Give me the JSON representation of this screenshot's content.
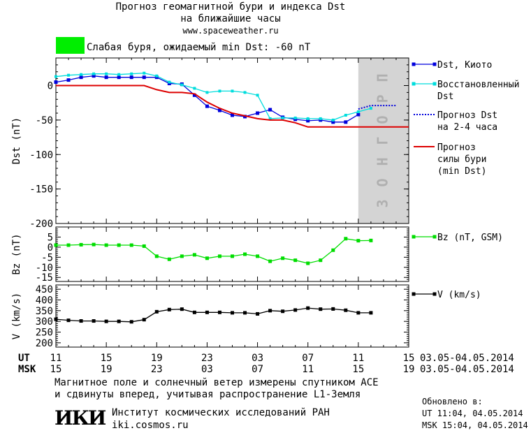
{
  "header": {
    "title_line1": "Прогноз геомагнитной бури и индекса Dst",
    "title_line2": "на ближайшие часы",
    "site": "www.spaceweather.ru",
    "storm_label": "Слабая буря, ожидаемый min Dst: -60 nT",
    "storm_color": "#00ee00"
  },
  "footer": {
    "line1": "Магнитное поле и солнечный ветер измерены спутником ACE",
    "line2": "и сдвинуты вперед, учитывая распространение L1-Земля",
    "logo": "ИКИ",
    "institute": "Институт космических исследований РАН",
    "institute_site": "iki.cosmos.ru",
    "updated_label": "Обновлено в:",
    "updated_ut": "UT  11:04, 04.05.2014",
    "updated_msk": "MSK 15:04, 04.05.2014"
  },
  "time_axis": {
    "ut_label": "UT",
    "msk_label": "MSK",
    "ut_ticks": [
      "11",
      "15",
      "19",
      "23",
      "03",
      "07",
      "11",
      "15"
    ],
    "msk_ticks": [
      "15",
      "19",
      "23",
      "03",
      "07",
      "11",
      "15",
      "19"
    ],
    "date_range": "03.05-04.05.2014",
    "x_range_hours": [
      0,
      28
    ]
  },
  "chart_data": [
    {
      "type": "line",
      "ylabel": "Dst (nT)",
      "ylim": [
        -200,
        40
      ],
      "yticks": [
        "0",
        "-50",
        "-100",
        "-150",
        "-200"
      ],
      "forecast_zone_label": "ПРОГНОЗ",
      "forecast_zone_x": [
        24,
        28
      ],
      "series": [
        {
          "name": "Dst, Киото",
          "color": "#0000dd",
          "x": [
            0,
            1,
            2,
            3,
            4,
            5,
            6,
            7,
            8,
            9,
            10,
            11,
            12,
            13,
            14,
            15,
            16,
            17,
            18,
            19,
            20,
            21,
            22,
            23,
            24
          ],
          "y": [
            5,
            8,
            12,
            14,
            12,
            12,
            12,
            12,
            12,
            3,
            2,
            -14,
            -30,
            -36,
            -43,
            -45,
            -40,
            -35,
            -46,
            -49,
            -51,
            -50,
            -53,
            -53,
            -42
          ]
        },
        {
          "name": "Восстановленный Dst",
          "color": "#00dddd",
          "x": [
            0,
            1,
            2,
            3,
            4,
            5,
            6,
            7,
            8,
            9,
            10,
            11,
            12,
            13,
            14,
            15,
            16,
            17,
            18,
            19,
            20,
            21,
            22,
            23,
            24,
            25
          ],
          "y": [
            13,
            15,
            16,
            17,
            17,
            16,
            17,
            18,
            14,
            5,
            1,
            -4,
            -10,
            -8,
            -8,
            -10,
            -14,
            -48,
            -47,
            -47,
            -48,
            -48,
            -50,
            -43,
            -38,
            -33
          ]
        },
        {
          "name": "Прогноз Dst на 2-4 часа",
          "color": "#0000dd",
          "x": [
            24,
            25,
            26,
            27
          ],
          "y": [
            -34,
            -29,
            -29,
            -29
          ]
        },
        {
          "name": "Прогноз силы бури (min Dst)",
          "color": "#dd0000",
          "x": [
            0,
            4,
            7,
            8,
            9,
            10,
            11,
            12,
            13,
            14,
            15,
            16,
            17,
            18,
            19,
            20,
            21,
            22,
            23,
            24,
            28
          ],
          "y": [
            0,
            0,
            0,
            -6,
            -10,
            -10,
            -12,
            -24,
            -33,
            -40,
            -44,
            -48,
            -50,
            -50,
            -54,
            -60,
            -60,
            -60,
            -60,
            -60,
            -60
          ]
        }
      ]
    },
    {
      "type": "line",
      "ylabel": "Bz (nT)",
      "ylim": [
        -17,
        10
      ],
      "yticks": [
        "5",
        "0",
        "-5",
        "-10",
        "-15"
      ],
      "series": [
        {
          "name": "Bz (nT, GSM)",
          "color": "#00dd00",
          "x": [
            0,
            1,
            2,
            3,
            4,
            5,
            6,
            7,
            8,
            9,
            10,
            11,
            12,
            13,
            14,
            15,
            16,
            17,
            18,
            19,
            20,
            21,
            22,
            23,
            24,
            25
          ],
          "y": [
            1,
            1,
            1.2,
            1.3,
            1,
            1,
            1,
            0.5,
            -4.5,
            -6,
            -4.5,
            -3.8,
            -5.5,
            -4.5,
            -4.5,
            -3.5,
            -4.5,
            -7,
            -5.5,
            -6.5,
            -8,
            -6.5,
            -1.5,
            4.2,
            3.2,
            3.3
          ]
        }
      ]
    },
    {
      "type": "line",
      "ylabel": "V (km/s)",
      "ylim": [
        180,
        470
      ],
      "yticks": [
        "450",
        "400",
        "350",
        "300",
        "250",
        "200"
      ],
      "series": [
        {
          "name": "V (km/s)",
          "color": "#000000",
          "x": [
            0,
            1,
            2,
            3,
            4,
            5,
            6,
            7,
            8,
            9,
            10,
            11,
            12,
            13,
            14,
            15,
            16,
            17,
            18,
            19,
            20,
            21,
            22,
            23,
            24,
            25
          ],
          "y": [
            310,
            305,
            302,
            302,
            300,
            300,
            298,
            308,
            345,
            355,
            357,
            342,
            342,
            342,
            340,
            340,
            335,
            350,
            347,
            353,
            362,
            357,
            358,
            352,
            340,
            340
          ]
        }
      ]
    }
  ]
}
